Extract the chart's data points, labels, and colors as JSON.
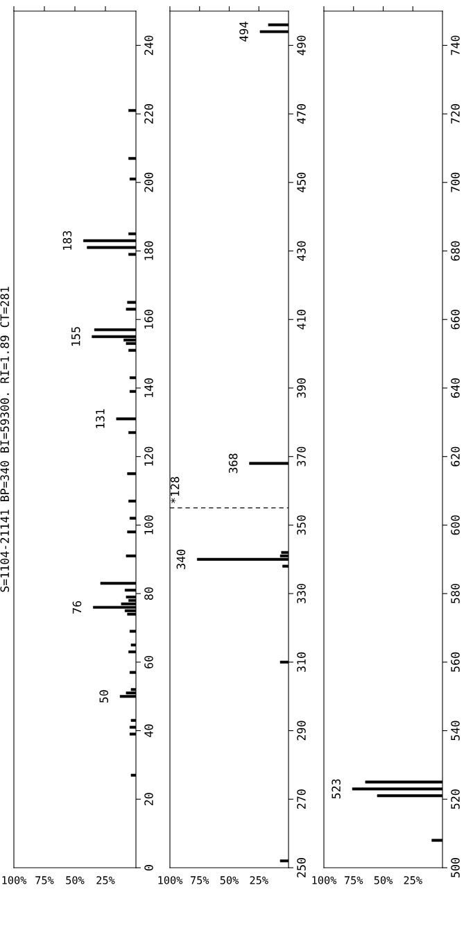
{
  "chart_data": [
    {
      "type": "bar",
      "orientation": "horizontal",
      "title": "S=1104-21141 BP=340 BI=59300. RI=1.89 CT=281",
      "x": [
        27,
        39,
        41,
        43,
        50,
        51,
        52,
        57,
        63,
        65,
        69,
        74,
        75,
        76,
        77,
        78,
        79,
        81,
        83,
        91,
        98,
        102,
        107,
        115,
        127,
        131,
        139,
        143,
        151,
        153,
        154,
        155,
        157,
        163,
        165,
        179,
        181,
        183,
        185,
        201,
        207,
        221
      ],
      "values": [
        4,
        5,
        5,
        4,
        13,
        8,
        4,
        5,
        6,
        4,
        5,
        7,
        9,
        35,
        12,
        6,
        8,
        9,
        29,
        8,
        7,
        5,
        6,
        7,
        6,
        16,
        5,
        5,
        6,
        8,
        10,
        36,
        34,
        8,
        7,
        6,
        40,
        43,
        6,
        5,
        6,
        6
      ],
      "color": "#000000",
      "xlim": [
        100,
        0
      ],
      "xticks": [
        {
          "value": 100,
          "label": "100%"
        },
        {
          "value": 75,
          "label": "75%"
        },
        {
          "value": 50,
          "label": "50%"
        },
        {
          "value": 25,
          "label": "25%"
        }
      ],
      "ylim": [
        0,
        250
      ],
      "yticks": [
        0,
        20,
        40,
        60,
        80,
        100,
        120,
        140,
        160,
        180,
        200,
        220,
        240
      ],
      "annotations": [
        {
          "text": "50",
          "x": 13,
          "y": 50
        },
        {
          "text": "76",
          "x": 35,
          "y": 76
        },
        {
          "text": "131",
          "x": 16,
          "y": 131
        },
        {
          "text": "155",
          "x": 36,
          "y": 155
        },
        {
          "text": "183",
          "x": 43,
          "y": 183
        }
      ],
      "grid": false
    },
    {
      "type": "bar",
      "orientation": "horizontal",
      "x": [
        252,
        310,
        338,
        340,
        341,
        342,
        368,
        494,
        496
      ],
      "values": [
        7,
        7,
        5,
        77,
        7,
        6,
        33,
        24,
        17
      ],
      "color": "#000000",
      "xlim": [
        100,
        0
      ],
      "xticks": [
        {
          "value": 100,
          "label": "100%"
        },
        {
          "value": 75,
          "label": "75%"
        },
        {
          "value": 50,
          "label": "50%"
        },
        {
          "value": 25,
          "label": "25%"
        }
      ],
      "ylim": [
        250,
        500
      ],
      "yticks": [
        250,
        270,
        290,
        310,
        330,
        350,
        370,
        390,
        410,
        430,
        450,
        470,
        490
      ],
      "annotations": [
        {
          "text": "340",
          "x": 77,
          "y": 340
        },
        {
          "text": "368",
          "x": 33,
          "y": 368
        },
        {
          "text": "494",
          "x": 24,
          "y": 494
        },
        {
          "text": "*128",
          "x": 95,
          "y": 355
        }
      ],
      "ref_lines": [
        {
          "axis": "y",
          "value": 355,
          "line_style": "dashed",
          "color": "#000000"
        }
      ],
      "grid": false
    },
    {
      "type": "bar",
      "orientation": "horizontal",
      "x": [
        508,
        521,
        523,
        525
      ],
      "values": [
        9,
        55,
        76,
        65
      ],
      "color": "#000000",
      "xlim": [
        100,
        0
      ],
      "xticks": [
        {
          "value": 100,
          "label": "100%"
        },
        {
          "value": 75,
          "label": "75%"
        },
        {
          "value": 50,
          "label": "50%"
        },
        {
          "value": 25,
          "label": "25%"
        }
      ],
      "ylim": [
        500,
        750
      ],
      "yticks": [
        500,
        520,
        540,
        560,
        580,
        600,
        620,
        640,
        660,
        680,
        700,
        720,
        740
      ],
      "annotations": [
        {
          "text": "523",
          "x": 76,
          "y": 523
        }
      ],
      "grid": false
    }
  ]
}
